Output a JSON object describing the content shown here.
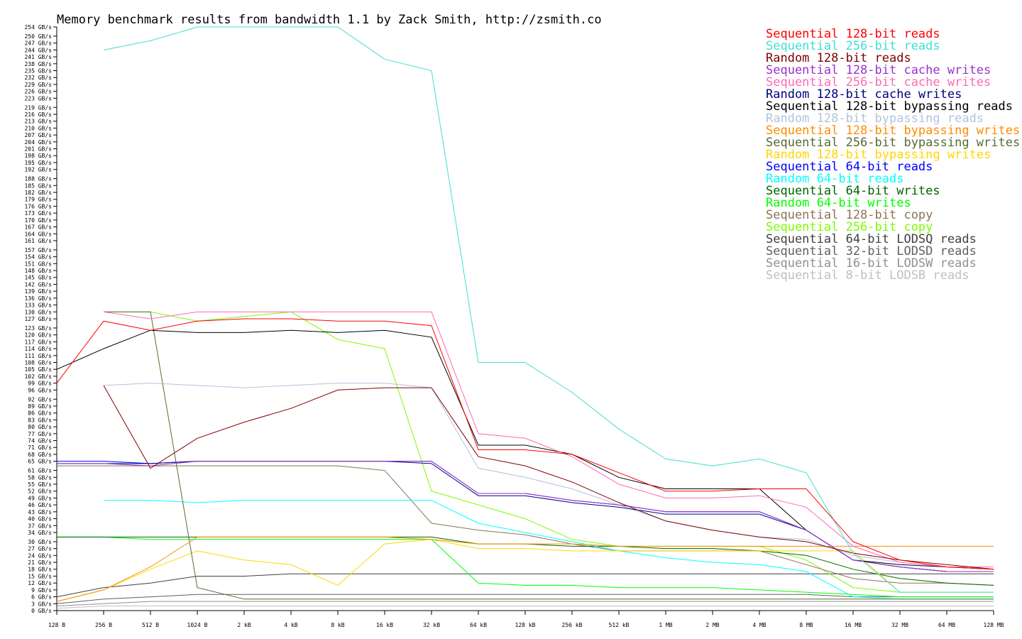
{
  "chart_data": {
    "type": "line",
    "title": "Memory benchmark results from bandwidth 1.1 by Zack Smith, http://zsmith.co",
    "xlabel": "",
    "ylabel": "",
    "x_scale": "log2",
    "x": [
      "128 B",
      "256 B",
      "512 B",
      "1024 B",
      "2 kB",
      "4 kB",
      "8 kB",
      "16 kB",
      "32 kB",
      "64 kB",
      "128 kB",
      "256 kB",
      "512 kB",
      "1 MB",
      "2 MB",
      "4 MB",
      "8 MB",
      "16 MB",
      "32 MB",
      "64 MB",
      "128 MB"
    ],
    "x_ticks": [
      "128 B",
      "256 B",
      "512 B",
      "1024 B",
      "2 kB",
      "4 kB",
      "8 kB",
      "16 kB",
      "32 kB",
      "64 kB",
      "128 kB",
      "256 kB",
      "512 kB",
      "1 MB",
      "2 MB",
      "4 MB",
      "8 MB",
      "16 MB",
      "32 MB",
      "64 MB",
      "128 MB"
    ],
    "y_unit": "GB/s",
    "ylim": [
      0,
      254
    ],
    "y_ticks": [
      "0 GB/s",
      "3 GB/s",
      "6 GB/s",
      "9 GB/s",
      "12 GB/s",
      "15 GB/s",
      "18 GB/s",
      "21 GB/s",
      "24 GB/s",
      "27 GB/s",
      "30 GB/s",
      "34 GB/s",
      "37 GB/s",
      "40 GB/s",
      "43 GB/s",
      "46 GB/s",
      "49 GB/s",
      "52 GB/s",
      "55 GB/s",
      "58 GB/s",
      "61 GB/s",
      "65 GB/s",
      "68 GB/s",
      "71 GB/s",
      "74 GB/s",
      "77 GB/s",
      "80 GB/s",
      "83 GB/s",
      "86 GB/s",
      "89 GB/s",
      "92 GB/s",
      "96 GB/s",
      "99 GB/s",
      "102 GB/s",
      "105 GB/s",
      "108 GB/s",
      "111 GB/s",
      "114 GB/s",
      "117 GB/s",
      "120 GB/s",
      "123 GB/s",
      "127 GB/s",
      "130 GB/s",
      "133 GB/s",
      "136 GB/s",
      "139 GB/s",
      "142 GB/s",
      "145 GB/s",
      "148 GB/s",
      "151 GB/s",
      "154 GB/s",
      "157 GB/s",
      "161 GB/s",
      "164 GB/s",
      "167 GB/s",
      "170 GB/s",
      "173 GB/s",
      "176 GB/s",
      "179 GB/s",
      "182 GB/s",
      "185 GB/s",
      "188 GB/s",
      "192 GB/s",
      "195 GB/s",
      "198 GB/s",
      "201 GB/s",
      "204 GB/s",
      "207 GB/s",
      "210 GB/s",
      "213 GB/s",
      "216 GB/s",
      "219 GB/s",
      "223 GB/s",
      "226 GB/s",
      "229 GB/s",
      "232 GB/s",
      "235 GB/s",
      "238 GB/s",
      "241 GB/s",
      "244 GB/s",
      "247 GB/s",
      "250 GB/s",
      "254 GB/s"
    ],
    "grid": false,
    "legend_position": "top-right",
    "series": [
      {
        "name": "Sequential 128-bit reads",
        "color": "#ff0000",
        "values": [
          99,
          126,
          122,
          126,
          127,
          127,
          126,
          126,
          124,
          70,
          70,
          68,
          60,
          52,
          52,
          53,
          53,
          30,
          22,
          19,
          18
        ]
      },
      {
        "name": "Sequential 256-bit reads",
        "color": "#40e0d0",
        "values": [
          null,
          244,
          248,
          254,
          254,
          254,
          254,
          240,
          235,
          108,
          108,
          95,
          79,
          66,
          63,
          66,
          60,
          25,
          8,
          8,
          8
        ]
      },
      {
        "name": "Random 128-bit reads",
        "color": "#800000",
        "values": [
          null,
          98,
          62,
          75,
          82,
          88,
          96,
          97,
          97,
          67,
          63,
          56,
          47,
          39,
          35,
          32,
          30,
          25,
          22,
          20,
          18
        ]
      },
      {
        "name": "Sequential 128-bit cache writes",
        "color": "#9932cc",
        "values": [
          64,
          64,
          63,
          65,
          65,
          65,
          65,
          65,
          65,
          51,
          51,
          48,
          46,
          43,
          43,
          43,
          35,
          22,
          19,
          17,
          17
        ]
      },
      {
        "name": "Sequential 256-bit cache writes",
        "color": "#ff69b4",
        "values": [
          null,
          130,
          127,
          130,
          130,
          130,
          130,
          130,
          130,
          77,
          75,
          67,
          55,
          49,
          49,
          50,
          45,
          28,
          21,
          19,
          19
        ]
      },
      {
        "name": "Random 128-bit cache writes",
        "color": "#000080",
        "values": [
          64,
          64,
          64,
          65,
          65,
          65,
          65,
          65,
          64,
          50,
          50,
          47,
          45,
          42,
          42,
          42,
          35,
          22,
          19,
          17,
          17
        ]
      },
      {
        "name": "Sequential 128-bit bypassing reads",
        "color": "#000000",
        "values": [
          105,
          114,
          122,
          121,
          121,
          122,
          121,
          122,
          119,
          72,
          72,
          68,
          58,
          53,
          53,
          53,
          35,
          22,
          20,
          19,
          18
        ]
      },
      {
        "name": "Random 128-bit bypassing reads",
        "color": "#b0c4de",
        "values": [
          null,
          98,
          99,
          98,
          97,
          98,
          99,
          99,
          97,
          62,
          58,
          53,
          46,
          39,
          35,
          32,
          31,
          24,
          21,
          19,
          18
        ]
      },
      {
        "name": "Sequential 128-bit bypassing writes",
        "color": "#ff8c00",
        "values": [
          4,
          9,
          19,
          32,
          32,
          32,
          32,
          32,
          31,
          29,
          29,
          29,
          28,
          28,
          28,
          28,
          28,
          28,
          28,
          28,
          28
        ]
      },
      {
        "name": "Sequential 256-bit bypassing writes",
        "color": "#556b2f",
        "values": [
          null,
          130,
          130,
          10,
          5,
          5,
          5,
          5,
          5,
          5,
          5,
          5,
          5,
          5,
          5,
          5,
          5,
          5,
          5,
          5,
          5
        ]
      },
      {
        "name": "Random 128-bit bypassing writes",
        "color": "#ffd700",
        "values": [
          4,
          9,
          18,
          26,
          22,
          20,
          11,
          29,
          31,
          27,
          27,
          26,
          26,
          26,
          26,
          26,
          26,
          26,
          8,
          8,
          8
        ]
      },
      {
        "name": "Sequential 64-bit reads",
        "color": "#0000ff",
        "values": [
          65,
          65,
          64,
          65,
          65,
          65,
          65,
          65,
          65,
          51,
          51,
          48,
          46,
          43,
          43,
          43,
          35,
          22,
          19,
          17,
          17
        ]
      },
      {
        "name": "Random 64-bit reads",
        "color": "#00ffff",
        "values": [
          null,
          48,
          48,
          47,
          48,
          48,
          48,
          48,
          48,
          38,
          34,
          30,
          26,
          23,
          21,
          20,
          17,
          6,
          5,
          5,
          5
        ]
      },
      {
        "name": "Sequential 64-bit writes",
        "color": "#006400",
        "values": [
          32,
          32,
          32,
          32,
          32,
          32,
          32,
          32,
          32,
          29,
          29,
          28,
          28,
          27,
          27,
          26,
          24,
          18,
          14,
          12,
          11
        ]
      },
      {
        "name": "Random 64-bit writes",
        "color": "#00ff00",
        "values": [
          32,
          32,
          31,
          31,
          31,
          31,
          31,
          31,
          31,
          12,
          11,
          11,
          10,
          10,
          10,
          9,
          8,
          7,
          6,
          6,
          6
        ]
      },
      {
        "name": "Sequential 128-bit copy",
        "color": "#8b7355",
        "values": [
          63,
          63,
          63,
          63,
          63,
          63,
          63,
          61,
          38,
          35,
          33,
          29,
          26,
          26,
          26,
          26,
          20,
          14,
          12,
          12,
          11
        ]
      },
      {
        "name": "Sequential 256-bit copy",
        "color": "#7cfc00",
        "values": [
          null,
          130,
          130,
          126,
          128,
          130,
          118,
          114,
          52,
          46,
          40,
          31,
          28,
          28,
          28,
          28,
          22,
          10,
          8,
          8,
          8
        ]
      },
      {
        "name": "Sequential 64-bit LODSQ reads",
        "color": "#404040",
        "values": [
          6,
          10,
          12,
          15,
          15,
          16,
          16,
          16,
          16,
          16,
          16,
          16,
          16,
          16,
          16,
          16,
          16,
          16,
          16,
          16,
          16
        ]
      },
      {
        "name": "Sequential 32-bit LODSD reads",
        "color": "#606060",
        "values": [
          3,
          5,
          6,
          7,
          7,
          7,
          7,
          7,
          7,
          7,
          7,
          7,
          7,
          7,
          7,
          7,
          7,
          6,
          6,
          6,
          6
        ]
      },
      {
        "name": "Sequential 16-bit LODSW reads",
        "color": "#909090",
        "values": [
          2,
          3,
          4,
          4,
          4,
          4,
          4,
          4,
          4,
          4,
          4,
          4,
          4,
          4,
          4,
          4,
          4,
          4,
          4,
          4,
          4
        ]
      },
      {
        "name": "Sequential 8-bit LODSB reads",
        "color": "#c0c0c0",
        "values": [
          1,
          2,
          2,
          2,
          2,
          2,
          2,
          2,
          2,
          2,
          2,
          2,
          2,
          2,
          2,
          2,
          2,
          2,
          2,
          2,
          2
        ]
      }
    ]
  }
}
